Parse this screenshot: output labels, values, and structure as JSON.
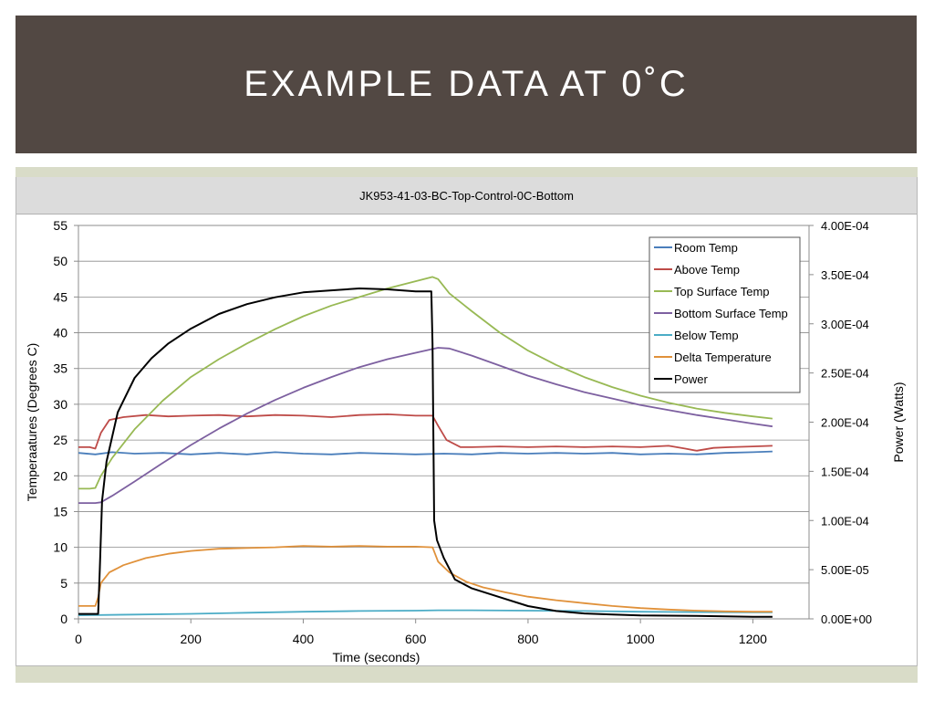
{
  "slide": {
    "title": "EXAMPLE DATA AT 0˚C"
  },
  "chart_data": {
    "type": "line",
    "title": "JK953-41-03-BC-Top-Control-0C-Bottom",
    "xlabel": "Time (seconds)",
    "ylabel": "Temperaatures (Degrees C)",
    "y2label": "Power (Watts)",
    "xlim": [
      0,
      1300
    ],
    "ylim": [
      0,
      55
    ],
    "y2lim": [
      0,
      0.0004
    ],
    "xticks": [
      "0",
      "200",
      "400",
      "600",
      "800",
      "1000",
      "1200"
    ],
    "yticks": [
      "0",
      "5",
      "10",
      "15",
      "20",
      "25",
      "30",
      "35",
      "40",
      "45",
      "50",
      "55"
    ],
    "y2ticks": [
      "0.00E+00",
      "5.00E-05",
      "1.00E-04",
      "1.50E-04",
      "2.00E-04",
      "2.50E-04",
      "3.00E-04",
      "3.50E-04",
      "4.00E-04"
    ],
    "grid": true,
    "legend_position": "top-right",
    "series": [
      {
        "name": "Room Temp",
        "color": "#4a7ebb",
        "axis": "left",
        "points": [
          [
            0,
            23.2
          ],
          [
            30,
            23.0
          ],
          [
            60,
            23.3
          ],
          [
            100,
            23.1
          ],
          [
            150,
            23.2
          ],
          [
            200,
            23.0
          ],
          [
            250,
            23.2
          ],
          [
            300,
            23.0
          ],
          [
            350,
            23.3
          ],
          [
            400,
            23.1
          ],
          [
            450,
            23.0
          ],
          [
            500,
            23.2
          ],
          [
            550,
            23.1
          ],
          [
            600,
            23.0
          ],
          [
            650,
            23.1
          ],
          [
            700,
            23.0
          ],
          [
            750,
            23.2
          ],
          [
            800,
            23.1
          ],
          [
            850,
            23.2
          ],
          [
            900,
            23.1
          ],
          [
            950,
            23.2
          ],
          [
            1000,
            23.0
          ],
          [
            1050,
            23.1
          ],
          [
            1100,
            23.0
          ],
          [
            1150,
            23.2
          ],
          [
            1200,
            23.3
          ],
          [
            1235,
            23.4
          ]
        ]
      },
      {
        "name": "Above Temp",
        "color": "#be4b48",
        "axis": "left",
        "points": [
          [
            0,
            24.0
          ],
          [
            20,
            24.0
          ],
          [
            30,
            23.8
          ],
          [
            40,
            26.0
          ],
          [
            55,
            27.8
          ],
          [
            80,
            28.2
          ],
          [
            120,
            28.5
          ],
          [
            160,
            28.3
          ],
          [
            200,
            28.4
          ],
          [
            250,
            28.5
          ],
          [
            300,
            28.3
          ],
          [
            350,
            28.5
          ],
          [
            400,
            28.4
          ],
          [
            450,
            28.2
          ],
          [
            500,
            28.5
          ],
          [
            550,
            28.6
          ],
          [
            600,
            28.4
          ],
          [
            630,
            28.4
          ],
          [
            640,
            27.0
          ],
          [
            655,
            25.0
          ],
          [
            680,
            24.0
          ],
          [
            700,
            24.0
          ],
          [
            750,
            24.1
          ],
          [
            800,
            24.0
          ],
          [
            850,
            24.1
          ],
          [
            900,
            24.0
          ],
          [
            950,
            24.1
          ],
          [
            1000,
            24.0
          ],
          [
            1050,
            24.2
          ],
          [
            1080,
            23.8
          ],
          [
            1100,
            23.5
          ],
          [
            1130,
            23.9
          ],
          [
            1160,
            24.0
          ],
          [
            1200,
            24.1
          ],
          [
            1235,
            24.2
          ]
        ]
      },
      {
        "name": "Top Surface Temp",
        "color": "#98b954",
        "axis": "left",
        "points": [
          [
            0,
            18.2
          ],
          [
            20,
            18.2
          ],
          [
            30,
            18.3
          ],
          [
            40,
            20.0
          ],
          [
            60,
            22.5
          ],
          [
            100,
            26.5
          ],
          [
            150,
            30.5
          ],
          [
            200,
            33.8
          ],
          [
            250,
            36.3
          ],
          [
            300,
            38.5
          ],
          [
            350,
            40.5
          ],
          [
            400,
            42.3
          ],
          [
            450,
            43.8
          ],
          [
            500,
            45.0
          ],
          [
            550,
            46.2
          ],
          [
            600,
            47.2
          ],
          [
            630,
            47.8
          ],
          [
            640,
            47.5
          ],
          [
            660,
            45.5
          ],
          [
            700,
            43.0
          ],
          [
            750,
            40.0
          ],
          [
            800,
            37.5
          ],
          [
            850,
            35.5
          ],
          [
            900,
            33.8
          ],
          [
            950,
            32.4
          ],
          [
            1000,
            31.2
          ],
          [
            1050,
            30.2
          ],
          [
            1100,
            29.4
          ],
          [
            1150,
            28.8
          ],
          [
            1200,
            28.3
          ],
          [
            1235,
            28.0
          ]
        ]
      },
      {
        "name": "Bottom Surface Temp",
        "color": "#7d60a0",
        "axis": "left",
        "points": [
          [
            0,
            16.2
          ],
          [
            30,
            16.2
          ],
          [
            40,
            16.3
          ],
          [
            60,
            17.2
          ],
          [
            100,
            19.2
          ],
          [
            150,
            21.8
          ],
          [
            200,
            24.3
          ],
          [
            250,
            26.6
          ],
          [
            300,
            28.7
          ],
          [
            350,
            30.6
          ],
          [
            400,
            32.3
          ],
          [
            450,
            33.8
          ],
          [
            500,
            35.2
          ],
          [
            550,
            36.3
          ],
          [
            600,
            37.2
          ],
          [
            640,
            37.9
          ],
          [
            660,
            37.8
          ],
          [
            700,
            36.8
          ],
          [
            750,
            35.4
          ],
          [
            800,
            34.0
          ],
          [
            850,
            32.8
          ],
          [
            900,
            31.7
          ],
          [
            950,
            30.8
          ],
          [
            1000,
            29.9
          ],
          [
            1050,
            29.2
          ],
          [
            1100,
            28.5
          ],
          [
            1150,
            27.9
          ],
          [
            1200,
            27.3
          ],
          [
            1235,
            26.9
          ]
        ]
      },
      {
        "name": "Below Temp",
        "color": "#4bacc6",
        "axis": "left",
        "points": [
          [
            0,
            0.5
          ],
          [
            100,
            0.6
          ],
          [
            200,
            0.7
          ],
          [
            300,
            0.85
          ],
          [
            400,
            1.0
          ],
          [
            500,
            1.1
          ],
          [
            600,
            1.15
          ],
          [
            640,
            1.2
          ],
          [
            700,
            1.2
          ],
          [
            800,
            1.15
          ],
          [
            900,
            1.1
          ],
          [
            1000,
            1.0
          ],
          [
            1100,
            0.95
          ],
          [
            1200,
            0.9
          ],
          [
            1235,
            0.9
          ]
        ]
      },
      {
        "name": "Delta Temperature",
        "color": "#e0913a",
        "axis": "left",
        "points": [
          [
            0,
            1.8
          ],
          [
            30,
            1.8
          ],
          [
            35,
            3.0
          ],
          [
            40,
            5.0
          ],
          [
            55,
            6.5
          ],
          [
            80,
            7.5
          ],
          [
            120,
            8.5
          ],
          [
            160,
            9.1
          ],
          [
            200,
            9.5
          ],
          [
            250,
            9.8
          ],
          [
            300,
            9.9
          ],
          [
            350,
            10.0
          ],
          [
            400,
            10.2
          ],
          [
            450,
            10.1
          ],
          [
            500,
            10.2
          ],
          [
            550,
            10.1
          ],
          [
            600,
            10.1
          ],
          [
            630,
            10.0
          ],
          [
            640,
            8.0
          ],
          [
            660,
            6.5
          ],
          [
            690,
            5.2
          ],
          [
            720,
            4.4
          ],
          [
            760,
            3.7
          ],
          [
            800,
            3.1
          ],
          [
            850,
            2.6
          ],
          [
            900,
            2.2
          ],
          [
            950,
            1.8
          ],
          [
            1000,
            1.5
          ],
          [
            1050,
            1.3
          ],
          [
            1100,
            1.15
          ],
          [
            1150,
            1.05
          ],
          [
            1200,
            1.0
          ],
          [
            1235,
            1.0
          ]
        ]
      },
      {
        "name": "Power",
        "color": "#000000",
        "axis": "right",
        "points": [
          [
            0,
            5e-06
          ],
          [
            30,
            5e-06
          ],
          [
            35,
            5e-06
          ],
          [
            38,
            5e-05
          ],
          [
            42,
            0.00012
          ],
          [
            50,
            0.00016
          ],
          [
            70,
            0.00021
          ],
          [
            100,
            0.000245
          ],
          [
            130,
            0.000265
          ],
          [
            160,
            0.00028
          ],
          [
            200,
            0.000295
          ],
          [
            250,
            0.00031
          ],
          [
            300,
            0.00032
          ],
          [
            350,
            0.000327
          ],
          [
            400,
            0.000332
          ],
          [
            450,
            0.000334
          ],
          [
            500,
            0.000336
          ],
          [
            550,
            0.000335
          ],
          [
            600,
            0.000333
          ],
          [
            628,
            0.000333
          ],
          [
            630,
            0.00028
          ],
          [
            633,
            0.0001
          ],
          [
            638,
            8e-05
          ],
          [
            650,
            6.2e-05
          ],
          [
            670,
            4e-05
          ],
          [
            700,
            3.1e-05
          ],
          [
            750,
            2.2e-05
          ],
          [
            800,
            1.3e-05
          ],
          [
            850,
            8e-06
          ],
          [
            900,
            5.5e-06
          ],
          [
            950,
            4.5e-06
          ],
          [
            1000,
            3.5e-06
          ],
          [
            1100,
            3e-06
          ],
          [
            1200,
            2e-06
          ],
          [
            1235,
            2e-06
          ]
        ]
      }
    ]
  }
}
